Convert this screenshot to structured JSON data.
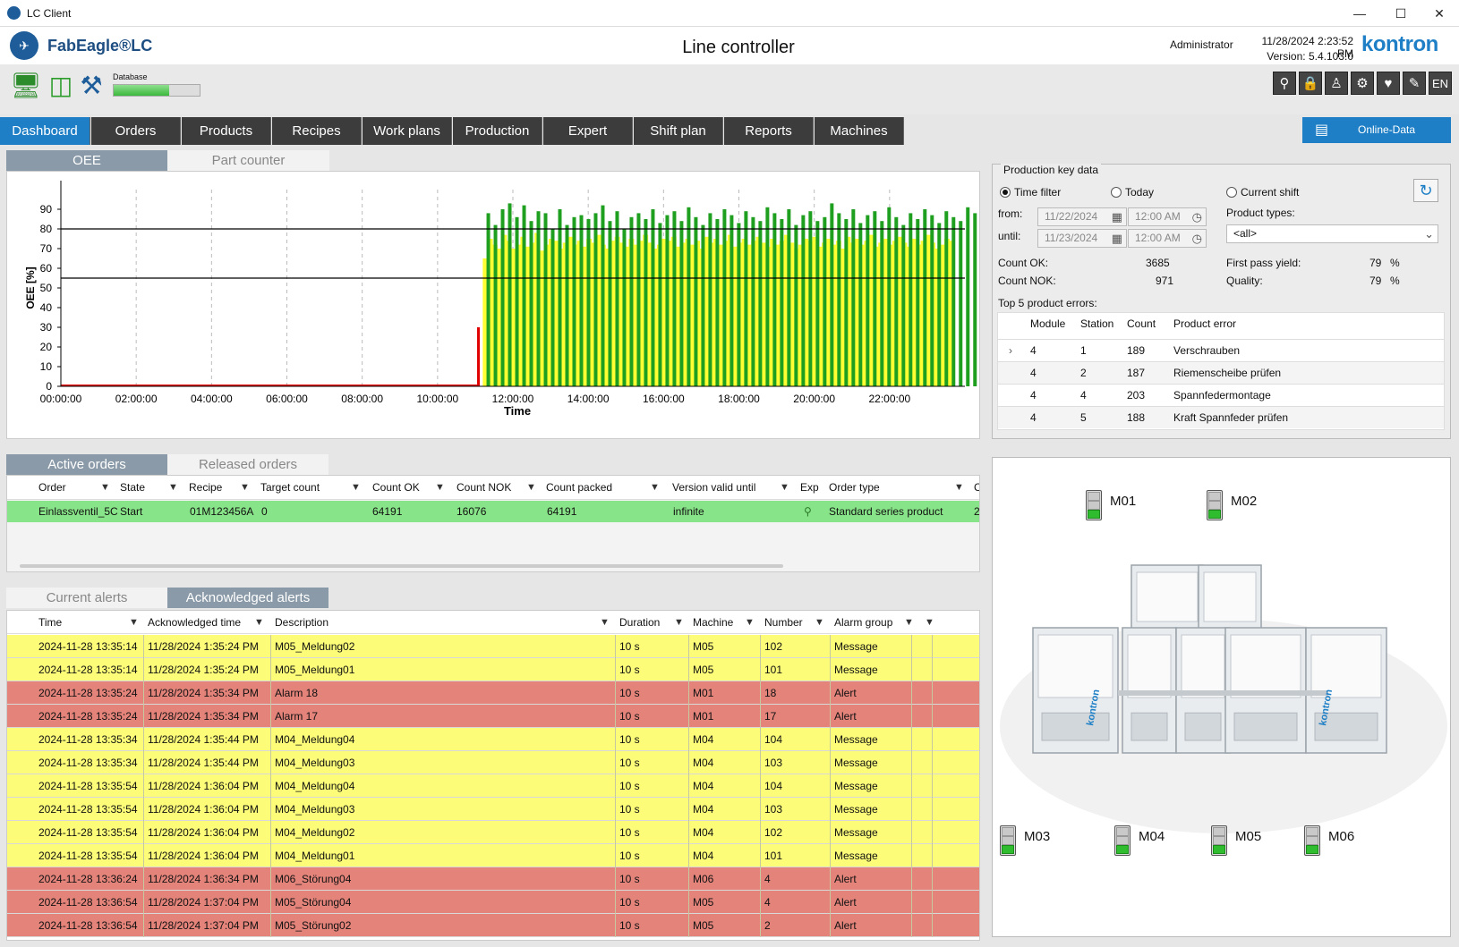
{
  "window": {
    "title": "LC Client"
  },
  "header": {
    "logo_text": "FabEagle®LC",
    "page_title": "Line controller",
    "user": "Administrator",
    "datetime": "11/28/2024 2:23:52 PM",
    "version": "Version: 5.4.103.0",
    "brand": "kontron"
  },
  "toolbar": {
    "database_label": "Database",
    "database_level": 0.65,
    "language": "EN",
    "icons": [
      "network-monitor-icon",
      "database-icon",
      "tools-icon"
    ],
    "system_buttons": [
      "key-icon",
      "lock-icon",
      "users-icon",
      "settings-icon",
      "health-icon",
      "report-icon"
    ]
  },
  "nav": {
    "tabs": [
      "Dashboard",
      "Orders",
      "Products",
      "Recipes",
      "Work plans",
      "Production",
      "Expert",
      "Shift plan",
      "Reports",
      "Machines"
    ],
    "active": "Dashboard",
    "online_data": "Online-Data"
  },
  "chart_tabs": {
    "oee": "OEE",
    "part_counter": "Part counter"
  },
  "chart_data": {
    "type": "bar",
    "xlabel": "Time",
    "ylabel": "OEE [%]",
    "ylim": [
      0,
      100
    ],
    "y_ticks": [
      0,
      10,
      20,
      30,
      40,
      50,
      60,
      70,
      80,
      90
    ],
    "x_ticks": [
      "00:00:00",
      "02:00:00",
      "04:00:00",
      "06:00:00",
      "08:00:00",
      "10:00:00",
      "12:00:00",
      "14:00:00",
      "16:00:00",
      "18:00:00",
      "20:00:00",
      "22:00:00"
    ],
    "x_range_hours": [
      0,
      24
    ],
    "reference_lines": [
      80,
      55
    ],
    "series": [
      {
        "name": "yellow",
        "color": "#ffff33",
        "start_hour": 11.2,
        "step_hours": 0.125,
        "values": [
          65,
          75,
          72,
          70,
          77,
          74,
          70,
          72,
          76,
          71,
          73,
          78,
          69,
          72,
          75,
          74,
          70,
          73,
          76,
          72,
          74,
          71,
          75,
          73,
          77,
          72,
          70,
          74,
          76,
          73,
          71,
          75,
          72,
          74,
          77,
          73,
          70,
          72,
          75,
          74,
          76,
          71,
          73,
          75,
          72,
          74,
          70,
          76,
          73,
          75,
          72,
          74,
          77,
          71,
          73,
          75,
          72,
          74,
          76,
          73,
          71,
          75,
          72,
          74,
          77,
          73,
          70,
          72,
          75,
          74,
          76,
          71,
          73,
          75,
          72,
          74,
          70,
          76,
          73,
          75,
          72,
          74,
          77,
          71,
          73,
          75,
          72,
          74,
          76,
          73,
          71,
          75,
          72,
          74,
          77,
          73,
          70,
          72,
          75,
          74
        ]
      },
      {
        "name": "green",
        "color": "#1f9f1f",
        "start_hour": 11.3,
        "step_hours": 0.19,
        "values": [
          88,
          82,
          90,
          93,
          86,
          92,
          84,
          89,
          88,
          80,
          90,
          82,
          86,
          87,
          85,
          88,
          92,
          84,
          89,
          80,
          86,
          88,
          85,
          90,
          83,
          87,
          89,
          84,
          91,
          86,
          82,
          88,
          85,
          90,
          87,
          83,
          89,
          86,
          84,
          91,
          88,
          85,
          90,
          82,
          87,
          89,
          84,
          86,
          93,
          88,
          85,
          90,
          83,
          87,
          89,
          84,
          91,
          86,
          82,
          88,
          85,
          90,
          87,
          83,
          89,
          86,
          84,
          91,
          88
        ]
      },
      {
        "name": "red",
        "color": "#e00000",
        "values": [
          {
            "x": 11.05,
            "y": 30
          }
        ]
      }
    ]
  },
  "key_data": {
    "title": "Production key data",
    "filters": [
      "Time filter",
      "Today",
      "Current shift"
    ],
    "selected_filter": "Time filter",
    "from_label": "from:",
    "until_label": "until:",
    "from_date": "11/22/2024",
    "from_time": "12:00 AM",
    "until_date": "11/23/2024",
    "until_time": "12:00 AM",
    "product_types_label": "Product types:",
    "product_type": "<all>",
    "count_ok_label": "Count OK:",
    "count_ok": "3685",
    "count_nok_label": "Count NOK:",
    "count_nok": "971",
    "fpy_label": "First pass yield:",
    "fpy": "79",
    "quality_label": "Quality:",
    "quality": "79",
    "percent": "%",
    "top_errors_label": "Top 5 product errors:",
    "error_columns": [
      "Module",
      "Station",
      "Count",
      "Product error"
    ],
    "errors": [
      {
        "module": "4",
        "station": "1",
        "count": "189",
        "error": "Verschrauben"
      },
      {
        "module": "4",
        "station": "2",
        "count": "187",
        "error": "Riemenscheibe prüfen"
      },
      {
        "module": "4",
        "station": "4",
        "count": "203",
        "error": "Spannfedermontage"
      },
      {
        "module": "4",
        "station": "5",
        "count": "188",
        "error": "Kraft Spannfeder prüfen"
      }
    ]
  },
  "orders": {
    "tabs": [
      "Active orders",
      "Released orders"
    ],
    "columns": [
      "Order",
      "State",
      "Recipe",
      "Target count",
      "Count OK",
      "Count NOK",
      "Count packed",
      "Version valid until",
      "Exp",
      "Order type",
      "C"
    ],
    "rows": [
      {
        "order": "Einlassventil_5C",
        "state": "Start",
        "recipe": "01M123456A",
        "target": "0",
        "ok": "64191",
        "nok": "16076",
        "packed": "64191",
        "valid": "infinite",
        "type": "Standard series product",
        "c": "2"
      }
    ]
  },
  "alerts": {
    "tabs": [
      "Current alerts",
      "Acknowledged alerts"
    ],
    "columns": [
      "Time",
      "Acknowledged time",
      "Description",
      "Duration",
      "Machine",
      "Number",
      "Alarm group"
    ],
    "rows": [
      {
        "time": "2024-11-28 13:35:14",
        "ack": "11/28/2024 1:35:24 PM",
        "desc": "M05_Meldung02",
        "dur": "10 s",
        "machine": "M05",
        "num": "102",
        "group": "Message",
        "kind": "y"
      },
      {
        "time": "2024-11-28 13:35:14",
        "ack": "11/28/2024 1:35:24 PM",
        "desc": "M05_Meldung01",
        "dur": "10 s",
        "machine": "M05",
        "num": "101",
        "group": "Message",
        "kind": "y"
      },
      {
        "time": "2024-11-28 13:35:24",
        "ack": "11/28/2024 1:35:34 PM",
        "desc": "Alarm  18",
        "dur": "10 s",
        "machine": "M01",
        "num": "18",
        "group": "Alert",
        "kind": "r"
      },
      {
        "time": "2024-11-28 13:35:24",
        "ack": "11/28/2024 1:35:34 PM",
        "desc": "Alarm  17",
        "dur": "10 s",
        "machine": "M01",
        "num": "17",
        "group": "Alert",
        "kind": "r"
      },
      {
        "time": "2024-11-28 13:35:34",
        "ack": "11/28/2024 1:35:44 PM",
        "desc": "M04_Meldung04",
        "dur": "10 s",
        "machine": "M04",
        "num": "104",
        "group": "Message",
        "kind": "y"
      },
      {
        "time": "2024-11-28 13:35:34",
        "ack": "11/28/2024 1:35:44 PM",
        "desc": "M04_Meldung03",
        "dur": "10 s",
        "machine": "M04",
        "num": "103",
        "group": "Message",
        "kind": "y"
      },
      {
        "time": "2024-11-28 13:35:54",
        "ack": "11/28/2024 1:36:04 PM",
        "desc": "M04_Meldung04",
        "dur": "10 s",
        "machine": "M04",
        "num": "104",
        "group": "Message",
        "kind": "y"
      },
      {
        "time": "2024-11-28 13:35:54",
        "ack": "11/28/2024 1:36:04 PM",
        "desc": "M04_Meldung03",
        "dur": "10 s",
        "machine": "M04",
        "num": "103",
        "group": "Message",
        "kind": "y"
      },
      {
        "time": "2024-11-28 13:35:54",
        "ack": "11/28/2024 1:36:04 PM",
        "desc": "M04_Meldung02",
        "dur": "10 s",
        "machine": "M04",
        "num": "102",
        "group": "Message",
        "kind": "y"
      },
      {
        "time": "2024-11-28 13:35:54",
        "ack": "11/28/2024 1:36:04 PM",
        "desc": "M04_Meldung01",
        "dur": "10 s",
        "machine": "M04",
        "num": "101",
        "group": "Message",
        "kind": "y"
      },
      {
        "time": "2024-11-28 13:36:24",
        "ack": "11/28/2024 1:36:34 PM",
        "desc": "M06_Störung04",
        "dur": "10 s",
        "machine": "M06",
        "num": "4",
        "group": "Alert",
        "kind": "r"
      },
      {
        "time": "2024-11-28 13:36:54",
        "ack": "11/28/2024 1:37:04 PM",
        "desc": "M05_Störung04",
        "dur": "10 s",
        "machine": "M05",
        "num": "4",
        "group": "Alert",
        "kind": "r"
      },
      {
        "time": "2024-11-28 13:36:54",
        "ack": "11/28/2024 1:37:04 PM",
        "desc": "M05_Störung02",
        "dur": "10 s",
        "machine": "M05",
        "num": "2",
        "group": "Alert",
        "kind": "r"
      }
    ]
  },
  "machines": [
    "M01",
    "M02",
    "M03",
    "M04",
    "M05",
    "M06"
  ],
  "machine_brand": "kontron"
}
